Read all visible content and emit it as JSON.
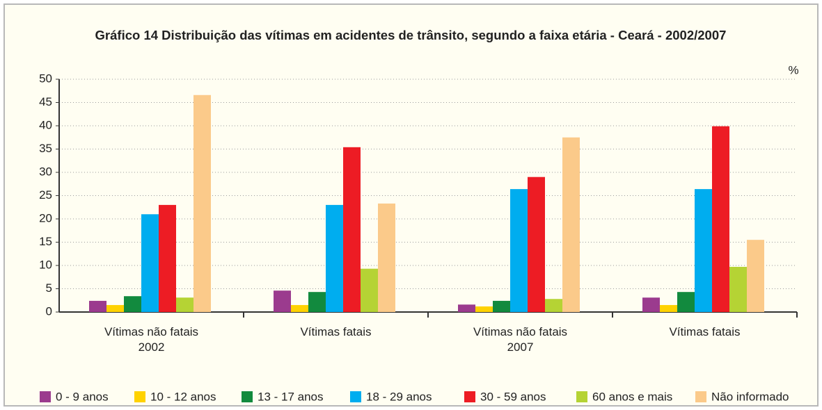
{
  "chart_data": {
    "type": "bar",
    "title": "Gráfico 14  Distribuição das vítimas em acidentes de trânsito, segundo a faixa etária - Ceará - 2002/2007",
    "unit_label": "%",
    "categories": [
      "Vítimas não fatais\n2002",
      "Vítimas fatais",
      "Vítimas não fatais\n2007",
      "Vítimas fatais"
    ],
    "series": [
      {
        "name": "0 - 9 anos",
        "color": "#9b3b8e",
        "values": [
          2.4,
          4.6,
          1.6,
          3.1
        ]
      },
      {
        "name": "10 - 12 anos",
        "color": "#ffd200",
        "values": [
          1.5,
          1.5,
          1.2,
          1.5
        ]
      },
      {
        "name": "13 - 17 anos",
        "color": "#128a3e",
        "values": [
          3.4,
          4.3,
          2.4,
          4.3
        ]
      },
      {
        "name": "18 - 29 anos",
        "color": "#00adef",
        "values": [
          21,
          23,
          26.4,
          26.4
        ]
      },
      {
        "name": "30 - 59 anos",
        "color": "#ed1c24",
        "values": [
          23,
          35.4,
          29,
          39.9
        ]
      },
      {
        "name": "60 anos e mais",
        "color": "#b5d334",
        "values": [
          3.1,
          9.3,
          2.8,
          9.7
        ]
      },
      {
        "name": "Não informado",
        "color": "#fbca8a",
        "values": [
          46.6,
          23.3,
          37.5,
          15.5
        ]
      }
    ],
    "ylim": [
      0,
      50
    ],
    "yticks": [
      0,
      5,
      10,
      15,
      20,
      25,
      30,
      35,
      40,
      45,
      50
    ],
    "grid": true
  }
}
